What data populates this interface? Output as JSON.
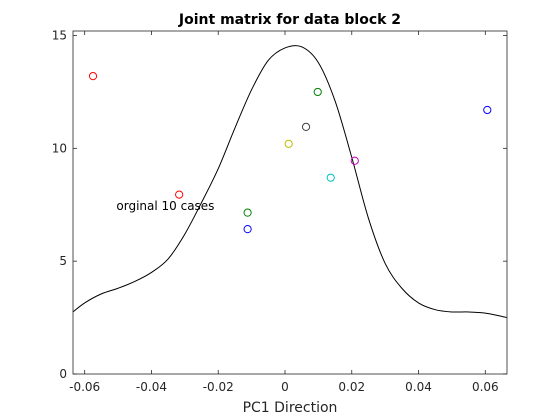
{
  "chart_data": {
    "type": "scatter",
    "title": "Joint matrix for data block 2",
    "xlabel": "PC1 Direction",
    "ylabel": "",
    "xlim": [
      -0.0635,
      0.0665
    ],
    "ylim": [
      0,
      15.2
    ],
    "xticks": [
      -0.06,
      -0.04,
      -0.02,
      0,
      0.02,
      0.04,
      0.06
    ],
    "xtick_labels": [
      "-0.06",
      "-0.04",
      "-0.02",
      "0",
      "0.02",
      "0.04",
      "0.06"
    ],
    "yticks": [
      0,
      5,
      10,
      15
    ],
    "ytick_labels": [
      "0",
      "5",
      "10",
      "15"
    ],
    "grid": false,
    "annotation": {
      "text": "orginal 10 cases",
      "x": -0.0505,
      "y": 7.45
    },
    "points": [
      {
        "x": -0.0575,
        "y": 13.2,
        "color": "#ff0000"
      },
      {
        "x": -0.0317,
        "y": 7.95,
        "color": "#ff0000"
      },
      {
        "x": -0.0112,
        "y": 7.15,
        "color": "#008000"
      },
      {
        "x": -0.0112,
        "y": 6.42,
        "color": "#0000ff"
      },
      {
        "x": 0.0011,
        "y": 10.2,
        "color": "#bfbf00"
      },
      {
        "x": 0.0063,
        "y": 10.95,
        "color": "#404040"
      },
      {
        "x": 0.0098,
        "y": 12.5,
        "color": "#008000"
      },
      {
        "x": 0.0137,
        "y": 8.7,
        "color": "#00bfbf"
      },
      {
        "x": 0.0209,
        "y": 9.45,
        "color": "#bf00bf"
      },
      {
        "x": 0.0606,
        "y": 11.7,
        "color": "#0000ff"
      }
    ],
    "curve": {
      "color": "#000000",
      "x": [
        -0.0635,
        -0.06,
        -0.055,
        -0.05,
        -0.045,
        -0.04,
        -0.035,
        -0.03,
        -0.025,
        -0.02,
        -0.015,
        -0.01,
        -0.005,
        0.0,
        0.005,
        0.01,
        0.015,
        0.02,
        0.025,
        0.03,
        0.035,
        0.04,
        0.045,
        0.05,
        0.055,
        0.06,
        0.065,
        0.0665
      ],
      "y": [
        2.75,
        3.15,
        3.55,
        3.8,
        4.1,
        4.5,
        5.1,
        6.2,
        7.6,
        9.1,
        10.9,
        12.6,
        13.9,
        14.45,
        14.5,
        13.8,
        12.1,
        9.6,
        6.9,
        4.9,
        3.8,
        3.15,
        2.85,
        2.75,
        2.75,
        2.7,
        2.55,
        2.5
      ]
    }
  }
}
